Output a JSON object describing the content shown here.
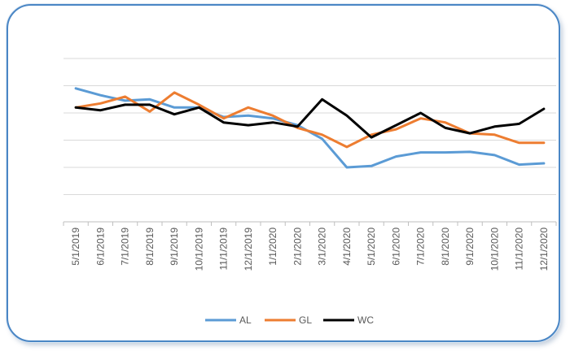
{
  "chart_data": {
    "type": "line",
    "title": "",
    "xlabel": "",
    "ylabel": "",
    "y_tick_labels": "none",
    "grid": true,
    "legend_placement": "bottom",
    "categories": [
      "5/1/2019",
      "6/1/2019",
      "7/1/2019",
      "8/1/2019",
      "9/1/2019",
      "10/1/2019",
      "11/1/2019",
      "12/1/2019",
      "1/1/2020",
      "2/1/2020",
      "3/1/2020",
      "4/1/2020",
      "5/1/2020",
      "6/1/2020",
      "7/1/2020",
      "8/1/2020",
      "9/1/2020",
      "10/1/2020",
      "11/1/2020",
      "12/1/2020"
    ],
    "ylim": [
      0,
      6
    ],
    "series": [
      {
        "name": "AL",
        "color": "#5b9bd5",
        "values": [
          4.9,
          4.65,
          4.45,
          4.5,
          4.2,
          4.2,
          3.85,
          3.9,
          3.8,
          3.55,
          3.05,
          2.0,
          2.05,
          2.4,
          2.55,
          2.55,
          2.57,
          2.45,
          2.1,
          2.15
        ]
      },
      {
        "name": "GL",
        "color": "#ed7d31",
        "values": [
          4.2,
          4.35,
          4.6,
          4.05,
          4.75,
          4.3,
          3.8,
          4.2,
          3.9,
          3.45,
          3.2,
          2.75,
          3.2,
          3.4,
          3.8,
          3.65,
          3.25,
          3.2,
          2.9,
          2.9
        ]
      },
      {
        "name": "WC",
        "color": "#000000",
        "values": [
          4.2,
          4.1,
          4.3,
          4.3,
          3.95,
          4.2,
          3.65,
          3.55,
          3.65,
          3.5,
          4.5,
          3.9,
          3.1,
          3.55,
          4.0,
          3.45,
          3.25,
          3.5,
          3.6,
          4.15
        ]
      }
    ]
  }
}
